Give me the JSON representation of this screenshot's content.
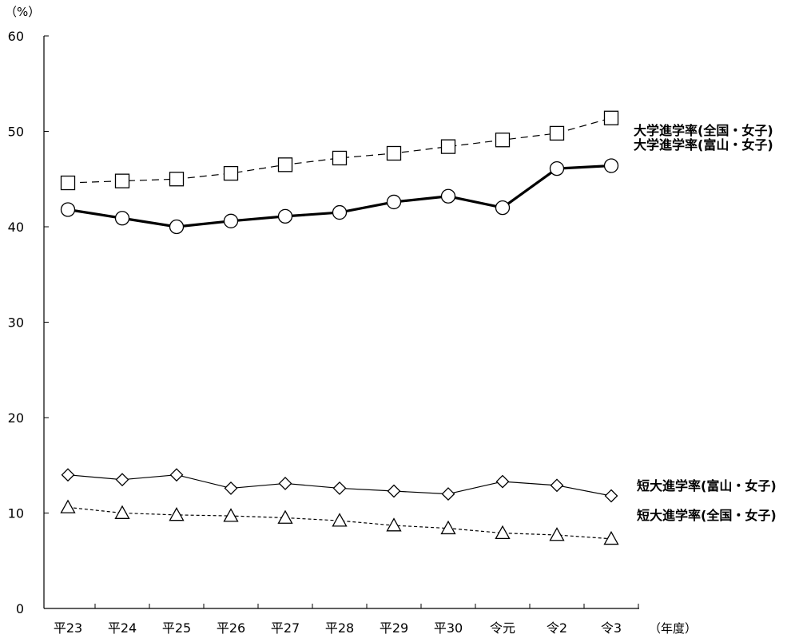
{
  "chart_data": {
    "type": "line",
    "y_unit": "（%）",
    "x_unit": "（年度）",
    "ylim": [
      0,
      60
    ],
    "yticks": [
      0,
      10,
      20,
      30,
      40,
      50,
      60
    ],
    "grid": false,
    "legend_placement": "right, next to series ends",
    "categories": [
      "平23",
      "平24",
      "平25",
      "平26",
      "平27",
      "平28",
      "平29",
      "平30",
      "令元",
      "令2",
      "令3"
    ],
    "series": [
      {
        "name": "大学進学率(全国・女子)",
        "marker": "square",
        "line_style": "dashed",
        "values": [
          44.6,
          44.8,
          45.0,
          45.6,
          46.5,
          47.2,
          47.7,
          48.4,
          49.1,
          49.8,
          51.4
        ]
      },
      {
        "name": "大学進学率(富山・女子)",
        "marker": "circle",
        "line_style": "solid-thick",
        "values": [
          41.8,
          40.9,
          40.0,
          40.6,
          41.1,
          41.5,
          42.6,
          43.2,
          42.0,
          46.1,
          46.4
        ]
      },
      {
        "name": "短大進学率(富山・女子)",
        "marker": "diamond",
        "line_style": "solid-thin",
        "values": [
          14.0,
          13.5,
          14.0,
          12.6,
          13.1,
          12.6,
          12.3,
          12.0,
          13.3,
          12.9,
          11.8
        ]
      },
      {
        "name": "短大進学率(全国・女子)",
        "marker": "triangle",
        "line_style": "dotted",
        "values": [
          10.6,
          10.0,
          9.8,
          9.7,
          9.5,
          9.2,
          8.7,
          8.4,
          7.9,
          7.7,
          7.3
        ]
      }
    ]
  }
}
